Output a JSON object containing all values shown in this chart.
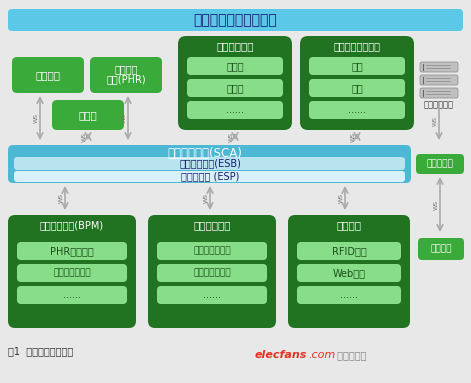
{
  "title": "慢病管理系统应用界面",
  "bg_color": "#e8e8e8",
  "top_bar_color": "#5bc8e8",
  "sca_bar_color": "#4db8d4",
  "sca_text": "服务组件架构(SCA)",
  "esb_color": "#b8e4f0",
  "esb_text": "企业服务总线(ESB)",
  "esp_color": "#d8f0f8",
  "esp_text": "事件流处理 (ESP)",
  "green_dark": "#217321",
  "green_medium": "#3aaa3a",
  "green_inner": "#88dd88",
  "bottom_text": "图1  慢病管理系统架构",
  "watermark_red": "#e83020",
  "watermark_gray": "#888888"
}
